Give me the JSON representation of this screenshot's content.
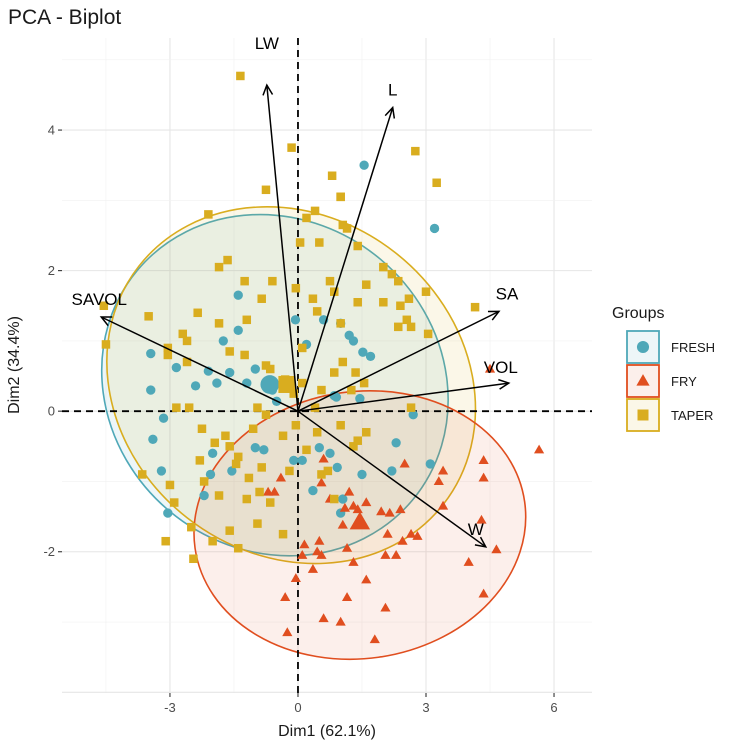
{
  "chart_data": {
    "type": "scatter",
    "subtype": "pca-biplot",
    "title": "PCA - Biplot",
    "xlabel": "Dim1 (62.1%)",
    "ylabel": "Dim2 (34.4%)",
    "xlim": [
      -5.53,
      6.89
    ],
    "ylim": [
      -4.01,
      5.31
    ],
    "xticks": [
      -3,
      0,
      3,
      6
    ],
    "xtick_labels": [
      "-3",
      "0",
      "3",
      "6"
    ],
    "yticks": [
      -2,
      0,
      2,
      4
    ],
    "ytick_labels": [
      "-2",
      "0",
      "2",
      "4"
    ],
    "grid": true,
    "reference_lines": {
      "x": 0,
      "y": 0,
      "style": "dashed"
    },
    "legend": {
      "title": "Groups",
      "position": "right",
      "entries": [
        {
          "label": "FRESH",
          "shape": "circle",
          "color": "#4fa8b8"
        },
        {
          "label": "FRY",
          "shape": "triangle",
          "color": "#e04e1f"
        },
        {
          "label": "TAPER",
          "shape": "square",
          "color": "#d9ad1f"
        }
      ]
    },
    "variables": [
      {
        "name": "LW",
        "x": -0.73,
        "y": 4.64
      },
      {
        "name": "L",
        "x": 2.22,
        "y": 4.32
      },
      {
        "name": "SA",
        "x": 4.71,
        "y": 1.42
      },
      {
        "name": "VOL",
        "x": 4.94,
        "y": 0.4
      },
      {
        "name": "W",
        "x": 4.4,
        "y": -1.93
      },
      {
        "name": "SAVOL",
        "x": -4.61,
        "y": 1.34
      }
    ],
    "ellipses": [
      {
        "group": "FRESH",
        "cx": -0.54,
        "cy": 0.37,
        "rx": 3.85,
        "ry": 2.55,
        "angle_deg": 50
      },
      {
        "group": "TAPER",
        "cx": -0.16,
        "cy": 0.37,
        "rx": 3.95,
        "ry": 2.75,
        "angle_deg": 52
      },
      {
        "group": "FRY",
        "cx": 1.45,
        "cy": -1.62,
        "rx": 3.9,
        "ry": 1.9,
        "angle_deg": 8
      }
    ],
    "group_means": [
      {
        "group": "FRESH",
        "x": -0.66,
        "y": 0.38
      },
      {
        "group": "TAPER",
        "x": -0.26,
        "y": 0.38
      },
      {
        "group": "FRY",
        "x": 1.45,
        "y": -1.58
      }
    ],
    "series": [
      {
        "name": "FRESH",
        "points": [
          [
            1.55,
            3.5
          ],
          [
            3.2,
            2.6
          ],
          [
            -1.4,
            1.65
          ],
          [
            -0.06,
            1.3
          ],
          [
            -1.4,
            1.15
          ],
          [
            0.6,
            1.3
          ],
          [
            1.0,
            1.25
          ],
          [
            1.2,
            1.08
          ],
          [
            1.3,
            1.0
          ],
          [
            1.52,
            0.84
          ],
          [
            1.7,
            0.78
          ],
          [
            0.2,
            0.95
          ],
          [
            -1.75,
            1.0
          ],
          [
            -1.6,
            0.55
          ],
          [
            -1.0,
            0.6
          ],
          [
            -2.1,
            0.57
          ],
          [
            -2.4,
            0.36
          ],
          [
            -1.9,
            0.4
          ],
          [
            -2.85,
            0.62
          ],
          [
            -3.45,
            0.82
          ],
          [
            -3.45,
            0.3
          ],
          [
            -1.2,
            0.4
          ],
          [
            -0.6,
            0.3
          ],
          [
            0.9,
            0.2
          ],
          [
            0.85,
            0.22
          ],
          [
            1.45,
            0.18
          ],
          [
            -0.5,
            0.14
          ],
          [
            2.7,
            -0.05
          ],
          [
            2.3,
            -0.45
          ],
          [
            -3.4,
            -0.4
          ],
          [
            -3.15,
            -0.1
          ],
          [
            -2.05,
            -0.9
          ],
          [
            -1.55,
            -0.85
          ],
          [
            -0.8,
            -0.55
          ],
          [
            -1.0,
            -0.52
          ],
          [
            -2.0,
            -0.6
          ],
          [
            -3.2,
            -0.85
          ],
          [
            0.5,
            -0.52
          ],
          [
            0.75,
            -0.6
          ],
          [
            0.1,
            -0.7
          ],
          [
            -0.1,
            -0.7
          ],
          [
            0.35,
            -1.13
          ],
          [
            1.05,
            -1.25
          ],
          [
            -3.05,
            -1.45
          ],
          [
            -2.2,
            -1.2
          ],
          [
            0.92,
            -0.8
          ],
          [
            1.0,
            -1.45
          ],
          [
            2.2,
            -0.85
          ],
          [
            3.1,
            -0.75
          ],
          [
            1.5,
            -0.9
          ]
        ]
      },
      {
        "name": "FRY",
        "points": [
          [
            4.5,
            0.6
          ],
          [
            3.3,
            -1.0
          ],
          [
            5.65,
            -0.55
          ],
          [
            4.35,
            -0.7
          ],
          [
            4.35,
            -0.95
          ],
          [
            3.4,
            -1.35
          ],
          [
            4.3,
            -1.55
          ],
          [
            4.65,
            -1.97
          ],
          [
            4.0,
            -2.15
          ],
          [
            4.35,
            -2.6
          ],
          [
            0.55,
            -1.02
          ],
          [
            0.75,
            -1.25
          ],
          [
            1.1,
            -1.38
          ],
          [
            1.3,
            -1.35
          ],
          [
            1.4,
            -1.4
          ],
          [
            1.6,
            -1.3
          ],
          [
            1.95,
            -1.43
          ],
          [
            2.15,
            -1.45
          ],
          [
            1.2,
            -1.15
          ],
          [
            2.4,
            -1.4
          ],
          [
            2.1,
            -1.75
          ],
          [
            2.45,
            -1.85
          ],
          [
            2.05,
            -2.05
          ],
          [
            2.3,
            -2.05
          ],
          [
            2.65,
            -1.75
          ],
          [
            2.8,
            -1.78
          ],
          [
            1.05,
            -1.62
          ],
          [
            1.15,
            -1.95
          ],
          [
            0.5,
            -1.85
          ],
          [
            0.45,
            -2.0
          ],
          [
            0.55,
            -2.05
          ],
          [
            0.1,
            -2.05
          ],
          [
            1.3,
            -2.15
          ],
          [
            1.6,
            -2.4
          ],
          [
            2.05,
            -2.8
          ],
          [
            0.6,
            -2.95
          ],
          [
            1.15,
            -2.65
          ],
          [
            0.35,
            -2.25
          ],
          [
            -0.3,
            -2.65
          ],
          [
            -0.25,
            -3.15
          ],
          [
            1.0,
            -3.0
          ],
          [
            1.8,
            -3.25
          ],
          [
            -0.4,
            -0.95
          ],
          [
            -0.7,
            -1.15
          ],
          [
            0.15,
            -1.9
          ],
          [
            -0.05,
            -2.38
          ],
          [
            -0.55,
            -1.15
          ],
          [
            0.6,
            -0.68
          ],
          [
            2.5,
            -0.75
          ],
          [
            3.4,
            -0.85
          ]
        ]
      },
      {
        "name": "TAPER",
        "points": [
          [
            -1.35,
            4.77
          ],
          [
            -0.15,
            3.75
          ],
          [
            2.75,
            3.7
          ],
          [
            3.25,
            3.25
          ],
          [
            -0.75,
            3.15
          ],
          [
            0.8,
            3.35
          ],
          [
            1.0,
            3.05
          ],
          [
            -2.1,
            2.8
          ],
          [
            0.2,
            2.75
          ],
          [
            1.0,
            3.05
          ],
          [
            0.4,
            2.85
          ],
          [
            1.05,
            2.65
          ],
          [
            1.15,
            2.6
          ],
          [
            1.4,
            2.35
          ],
          [
            0.05,
            2.4
          ],
          [
            0.5,
            2.4
          ],
          [
            -1.85,
            2.05
          ],
          [
            -1.65,
            2.15
          ],
          [
            -0.6,
            1.85
          ],
          [
            -0.05,
            1.75
          ],
          [
            -2.35,
            1.4
          ],
          [
            -1.25,
            1.85
          ],
          [
            -0.85,
            1.6
          ],
          [
            -1.85,
            1.25
          ],
          [
            -1.2,
            1.3
          ],
          [
            -2.7,
            1.1
          ],
          [
            -2.6,
            1.0
          ],
          [
            -3.05,
            0.9
          ],
          [
            -3.05,
            0.8
          ],
          [
            -2.6,
            0.7
          ],
          [
            -3.5,
            1.35
          ],
          [
            -4.55,
            1.5
          ],
          [
            -4.5,
            0.95
          ],
          [
            -1.6,
            0.85
          ],
          [
            -1.25,
            0.8
          ],
          [
            -0.75,
            0.65
          ],
          [
            -0.65,
            0.6
          ],
          [
            0.1,
            0.9
          ],
          [
            0.35,
            1.6
          ],
          [
            0.45,
            1.42
          ],
          [
            0.75,
            1.85
          ],
          [
            0.85,
            1.7
          ],
          [
            1.0,
            1.25
          ],
          [
            1.4,
            1.55
          ],
          [
            1.6,
            1.8
          ],
          [
            2.0,
            2.05
          ],
          [
            2.2,
            1.95
          ],
          [
            2.35,
            1.85
          ],
          [
            2.0,
            1.55
          ],
          [
            2.4,
            1.5
          ],
          [
            2.55,
            1.3
          ],
          [
            2.35,
            1.2
          ],
          [
            2.65,
            1.2
          ],
          [
            2.6,
            1.6
          ],
          [
            3.0,
            1.7
          ],
          [
            4.15,
            1.48
          ],
          [
            3.05,
            1.1
          ],
          [
            1.05,
            0.7
          ],
          [
            1.35,
            0.55
          ],
          [
            1.55,
            0.4
          ],
          [
            -0.3,
            0.45
          ],
          [
            0.1,
            0.4
          ],
          [
            0.55,
            0.3
          ],
          [
            0.85,
            0.55
          ],
          [
            1.25,
            0.3
          ],
          [
            2.65,
            0.05
          ],
          [
            -2.85,
            0.05
          ],
          [
            -2.55,
            0.05
          ],
          [
            -0.95,
            0.05
          ],
          [
            -0.75,
            -0.05
          ],
          [
            -2.25,
            -0.25
          ],
          [
            -1.95,
            -0.45
          ],
          [
            -1.7,
            -0.35
          ],
          [
            -1.4,
            -0.65
          ],
          [
            -2.3,
            -0.7
          ],
          [
            -3.65,
            -0.9
          ],
          [
            -3.0,
            -1.05
          ],
          [
            -2.2,
            -1.0
          ],
          [
            -1.45,
            -0.75
          ],
          [
            -1.15,
            -0.95
          ],
          [
            -0.9,
            -1.15
          ],
          [
            -0.65,
            -1.3
          ],
          [
            -1.2,
            -1.25
          ],
          [
            -1.85,
            -1.2
          ],
          [
            -1.6,
            -0.5
          ],
          [
            -0.35,
            -0.35
          ],
          [
            0.2,
            -0.55
          ],
          [
            0.55,
            -0.9
          ],
          [
            0.7,
            -0.85
          ],
          [
            0.45,
            -0.3
          ],
          [
            1.0,
            -0.2
          ],
          [
            1.6,
            -0.3
          ],
          [
            1.3,
            -0.5
          ],
          [
            -0.2,
            -0.85
          ],
          [
            0.85,
            -1.25
          ],
          [
            -2.5,
            -1.65
          ],
          [
            -2.0,
            -1.85
          ],
          [
            -2.9,
            -1.3
          ],
          [
            -3.1,
            -1.85
          ],
          [
            -2.45,
            -2.1
          ],
          [
            -1.6,
            -1.7
          ],
          [
            -0.35,
            -1.75
          ],
          [
            -0.95,
            -1.6
          ],
          [
            -1.4,
            -1.95
          ],
          [
            -0.05,
            -0.2
          ],
          [
            1.4,
            -0.42
          ],
          [
            -0.1,
            0.25
          ],
          [
            -1.05,
            -0.25
          ],
          [
            -0.85,
            -0.8
          ],
          [
            0.4,
            0.05
          ]
        ]
      }
    ]
  }
}
